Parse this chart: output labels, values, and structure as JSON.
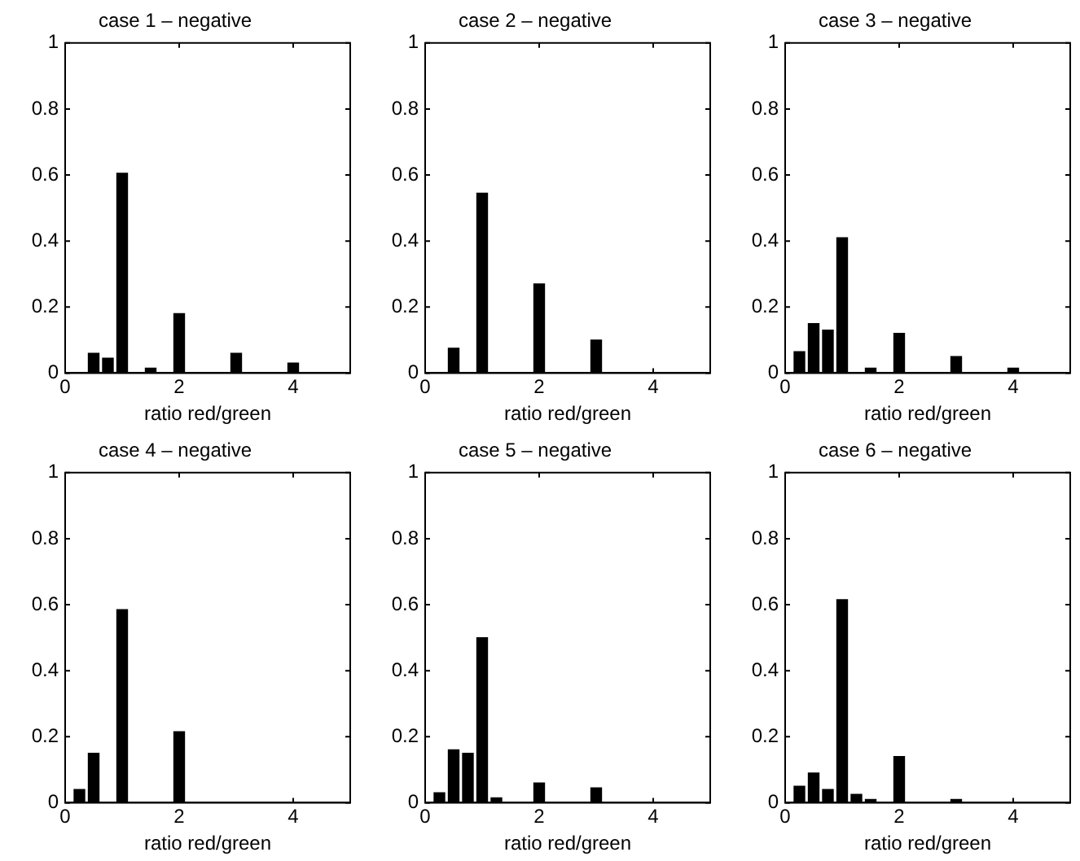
{
  "chart_data": [
    {
      "type": "bar",
      "title": "case 1 – negative",
      "xlabel": "ratio red/green",
      "x": [
        0.5,
        0.75,
        1,
        1.5,
        2,
        3,
        4
      ],
      "values": [
        0.06,
        0.045,
        0.605,
        0.015,
        0.18,
        0.06,
        0.03
      ],
      "color": "#000000",
      "xlim": [
        0,
        5
      ],
      "xticks": [
        0,
        2,
        4
      ],
      "ylim": [
        0,
        1
      ],
      "yticks": [
        0,
        0.2,
        0.4,
        0.6,
        0.8,
        1
      ],
      "grid": false,
      "legend": false
    },
    {
      "type": "bar",
      "title": "case 2 – negative",
      "xlabel": "ratio red/green",
      "x": [
        0.5,
        1,
        2,
        3
      ],
      "values": [
        0.075,
        0.545,
        0.27,
        0.1
      ],
      "color": "#000000",
      "xlim": [
        0,
        5
      ],
      "xticks": [
        0,
        2,
        4
      ],
      "ylim": [
        0,
        1
      ],
      "yticks": [
        0,
        0.2,
        0.4,
        0.6,
        0.8,
        1
      ],
      "grid": false,
      "legend": false
    },
    {
      "type": "bar",
      "title": "case 3 – negative",
      "xlabel": "ratio red/green",
      "x": [
        0.25,
        0.5,
        0.75,
        1,
        1.5,
        2,
        3,
        4
      ],
      "values": [
        0.065,
        0.15,
        0.13,
        0.41,
        0.015,
        0.12,
        0.05,
        0.015
      ],
      "color": "#000000",
      "xlim": [
        0,
        5
      ],
      "xticks": [
        0,
        2,
        4
      ],
      "ylim": [
        0,
        1
      ],
      "yticks": [
        0,
        0.2,
        0.4,
        0.6,
        0.8,
        1
      ],
      "grid": false,
      "legend": false
    },
    {
      "type": "bar",
      "title": "case 4 – negative",
      "xlabel": "ratio red/green",
      "x": [
        0.25,
        0.5,
        1,
        2
      ],
      "values": [
        0.04,
        0.15,
        0.585,
        0.215
      ],
      "color": "#000000",
      "xlim": [
        0,
        5
      ],
      "xticks": [
        0,
        2,
        4
      ],
      "ylim": [
        0,
        1
      ],
      "yticks": [
        0,
        0.2,
        0.4,
        0.6,
        0.8,
        1
      ],
      "grid": false,
      "legend": false
    },
    {
      "type": "bar",
      "title": "case 5 – negative",
      "xlabel": "ratio red/green",
      "x": [
        0.25,
        0.5,
        0.75,
        1,
        1.25,
        2,
        3
      ],
      "values": [
        0.03,
        0.16,
        0.15,
        0.5,
        0.015,
        0.06,
        0.045
      ],
      "color": "#000000",
      "xlim": [
        0,
        5
      ],
      "xticks": [
        0,
        2,
        4
      ],
      "ylim": [
        0,
        1
      ],
      "yticks": [
        0,
        0.2,
        0.4,
        0.6,
        0.8,
        1
      ],
      "grid": false,
      "legend": false
    },
    {
      "type": "bar",
      "title": "case 6 – negative",
      "xlabel": "ratio red/green",
      "x": [
        0.25,
        0.5,
        0.75,
        1,
        1.25,
        1.5,
        2,
        3
      ],
      "values": [
        0.05,
        0.09,
        0.04,
        0.615,
        0.025,
        0.01,
        0.14,
        0.01
      ],
      "color": "#000000",
      "xlim": [
        0,
        5
      ],
      "xticks": [
        0,
        2,
        4
      ],
      "ylim": [
        0,
        1
      ],
      "yticks": [
        0,
        0.2,
        0.4,
        0.6,
        0.8,
        1
      ],
      "grid": false,
      "legend": false
    }
  ]
}
